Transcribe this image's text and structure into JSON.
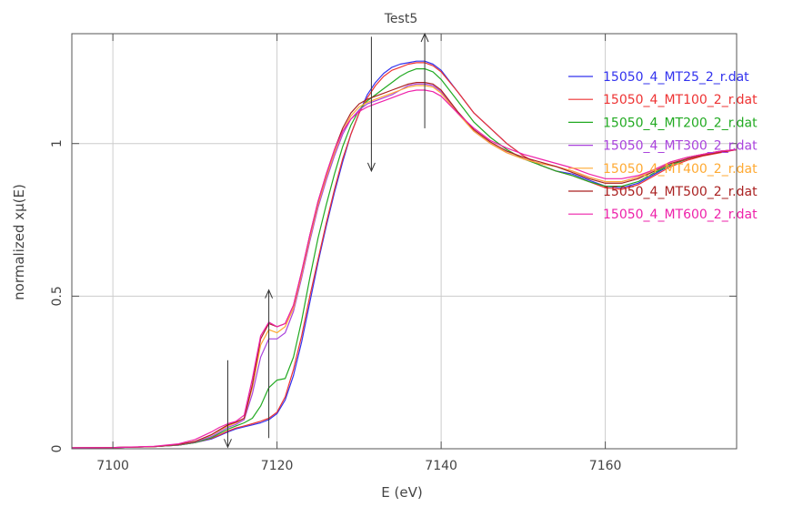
{
  "chart_data": {
    "type": "line",
    "title": "Test5",
    "xlabel": "E (eV)",
    "ylabel": "normalized xμ(E)",
    "xlim": [
      7095,
      7176
    ],
    "ylim": [
      0,
      1.36
    ],
    "xticks": [
      7100,
      7120,
      7140,
      7160
    ],
    "yticks": [
      0,
      0.5,
      1
    ],
    "ytick_labels": [
      "0",
      "0.5",
      "1"
    ],
    "grid": true,
    "legend_position": "top-right",
    "colors": {
      "blue": "#3333ee",
      "red": "#ee3333",
      "green": "#22aa22",
      "purple": "#aa44dd",
      "orange": "#ffaa33",
      "brown": "#aa2222",
      "magenta": "#ee22aa",
      "grid": "#cccccc",
      "axis": "#555555",
      "arrow": "#333333"
    },
    "x": [
      7095,
      7100,
      7105,
      7108,
      7110,
      7112,
      7113,
      7114,
      7115,
      7116,
      7117,
      7118,
      7119,
      7120,
      7121,
      7122,
      7123,
      7124,
      7125,
      7126,
      7127,
      7128,
      7129,
      7130,
      7131,
      7132,
      7133,
      7134,
      7135,
      7136,
      7137,
      7138,
      7139,
      7140,
      7142,
      7144,
      7146,
      7148,
      7150,
      7152,
      7154,
      7156,
      7158,
      7160,
      7162,
      7164,
      7166,
      7168,
      7170,
      7172,
      7174,
      7176
    ],
    "series": [
      {
        "name": "15050_4_MT25_2_r.dat",
        "color": "#3333ee",
        "values": [
          0.003,
          0.004,
          0.007,
          0.012,
          0.02,
          0.032,
          0.043,
          0.055,
          0.065,
          0.072,
          0.078,
          0.085,
          0.095,
          0.115,
          0.16,
          0.24,
          0.35,
          0.48,
          0.61,
          0.73,
          0.84,
          0.94,
          1.03,
          1.1,
          1.16,
          1.2,
          1.23,
          1.25,
          1.26,
          1.265,
          1.27,
          1.27,
          1.26,
          1.24,
          1.17,
          1.1,
          1.05,
          1.0,
          0.96,
          0.93,
          0.91,
          0.9,
          0.88,
          0.86,
          0.855,
          0.87,
          0.9,
          0.93,
          0.95,
          0.965,
          0.975,
          0.98
        ]
      },
      {
        "name": "15050_4_MT100_2_r.dat",
        "color": "#ee3333",
        "values": [
          0.003,
          0.004,
          0.007,
          0.012,
          0.02,
          0.034,
          0.045,
          0.058,
          0.068,
          0.075,
          0.082,
          0.09,
          0.1,
          0.12,
          0.17,
          0.26,
          0.37,
          0.5,
          0.62,
          0.74,
          0.85,
          0.95,
          1.03,
          1.1,
          1.15,
          1.19,
          1.22,
          1.24,
          1.25,
          1.26,
          1.265,
          1.265,
          1.255,
          1.235,
          1.17,
          1.1,
          1.05,
          1.0,
          0.96,
          0.93,
          0.91,
          0.895,
          0.875,
          0.855,
          0.85,
          0.865,
          0.895,
          0.925,
          0.945,
          0.96,
          0.97,
          0.98
        ]
      },
      {
        "name": "15050_4_MT200_2_r.dat",
        "color": "#22aa22",
        "values": [
          0.003,
          0.004,
          0.007,
          0.012,
          0.02,
          0.036,
          0.05,
          0.064,
          0.075,
          0.085,
          0.1,
          0.14,
          0.2,
          0.225,
          0.23,
          0.3,
          0.42,
          0.56,
          0.69,
          0.8,
          0.9,
          0.99,
          1.06,
          1.11,
          1.14,
          1.16,
          1.18,
          1.2,
          1.22,
          1.235,
          1.245,
          1.245,
          1.235,
          1.21,
          1.14,
          1.07,
          1.02,
          0.98,
          0.95,
          0.93,
          0.91,
          0.895,
          0.875,
          0.86,
          0.86,
          0.875,
          0.905,
          0.93,
          0.95,
          0.965,
          0.975,
          0.98
        ]
      },
      {
        "name": "15050_4_MT300_2_r.dat",
        "color": "#aa44dd",
        "values": [
          0.003,
          0.004,
          0.007,
          0.013,
          0.022,
          0.04,
          0.055,
          0.07,
          0.08,
          0.095,
          0.18,
          0.3,
          0.36,
          0.36,
          0.38,
          0.45,
          0.56,
          0.68,
          0.79,
          0.88,
          0.96,
          1.03,
          1.08,
          1.11,
          1.13,
          1.14,
          1.15,
          1.16,
          1.175,
          1.19,
          1.195,
          1.195,
          1.19,
          1.17,
          1.1,
          1.04,
          1.0,
          0.97,
          0.95,
          0.935,
          0.925,
          0.91,
          0.89,
          0.875,
          0.875,
          0.89,
          0.915,
          0.94,
          0.955,
          0.965,
          0.975,
          0.98
        ]
      },
      {
        "name": "15050_4_MT400_2_r.dat",
        "color": "#ffaa33",
        "values": [
          0.003,
          0.004,
          0.007,
          0.014,
          0.024,
          0.045,
          0.06,
          0.075,
          0.085,
          0.1,
          0.2,
          0.34,
          0.39,
          0.38,
          0.4,
          0.46,
          0.57,
          0.69,
          0.8,
          0.89,
          0.97,
          1.04,
          1.09,
          1.12,
          1.135,
          1.145,
          1.155,
          1.165,
          1.175,
          1.185,
          1.19,
          1.19,
          1.185,
          1.165,
          1.1,
          1.04,
          1.0,
          0.97,
          0.95,
          0.935,
          0.925,
          0.91,
          0.89,
          0.875,
          0.875,
          0.89,
          0.915,
          0.94,
          0.955,
          0.965,
          0.975,
          0.98
        ]
      },
      {
        "name": "15050_4_MT500_2_r.dat",
        "color": "#aa2222",
        "values": [
          0.003,
          0.004,
          0.007,
          0.014,
          0.024,
          0.046,
          0.062,
          0.078,
          0.087,
          0.1,
          0.21,
          0.36,
          0.41,
          0.4,
          0.41,
          0.47,
          0.58,
          0.7,
          0.81,
          0.9,
          0.98,
          1.05,
          1.1,
          1.13,
          1.145,
          1.155,
          1.165,
          1.175,
          1.185,
          1.195,
          1.2,
          1.2,
          1.195,
          1.175,
          1.105,
          1.045,
          1.005,
          0.975,
          0.955,
          0.94,
          0.925,
          0.905,
          0.885,
          0.87,
          0.87,
          0.885,
          0.91,
          0.935,
          0.95,
          0.962,
          0.972,
          0.98
        ]
      },
      {
        "name": "15050_4_MT600_2_r.dat",
        "color": "#ee22aa",
        "values": [
          0.003,
          0.004,
          0.008,
          0.016,
          0.03,
          0.055,
          0.07,
          0.082,
          0.09,
          0.11,
          0.23,
          0.37,
          0.415,
          0.4,
          0.41,
          0.47,
          0.58,
          0.7,
          0.81,
          0.9,
          0.98,
          1.04,
          1.08,
          1.105,
          1.12,
          1.13,
          1.14,
          1.15,
          1.16,
          1.17,
          1.175,
          1.175,
          1.17,
          1.155,
          1.1,
          1.05,
          1.01,
          0.985,
          0.965,
          0.95,
          0.935,
          0.92,
          0.9,
          0.885,
          0.885,
          0.895,
          0.915,
          0.94,
          0.955,
          0.965,
          0.975,
          0.98
        ]
      }
    ],
    "annotations": [
      {
        "type": "arrow",
        "direction": "down",
        "x": 7114,
        "y_start": 0.29,
        "y_end": 0.005
      },
      {
        "type": "arrow",
        "direction": "up",
        "x": 7119,
        "y_start": 0.035,
        "y_end": 0.52
      },
      {
        "type": "arrow",
        "direction": "down",
        "x": 7131.5,
        "y_start": 1.35,
        "y_end": 0.91
      },
      {
        "type": "arrow",
        "direction": "up",
        "x": 7138,
        "y_start": 1.05,
        "y_end": 1.36
      }
    ]
  }
}
